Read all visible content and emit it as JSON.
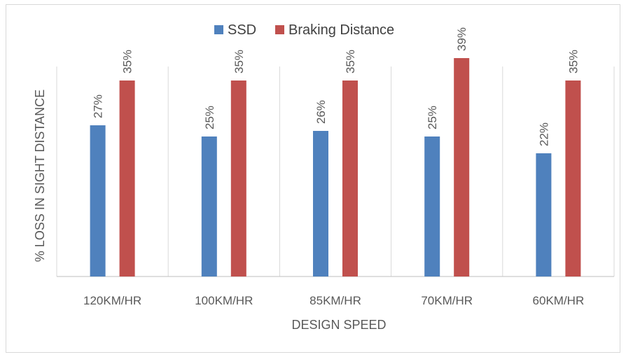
{
  "chart_data": {
    "type": "bar",
    "categories": [
      "120KM/HR",
      "100KM/HR",
      "85KM/HR",
      "70KM/HR",
      "60KM/HR"
    ],
    "series": [
      {
        "name": "SSD",
        "values": [
          27,
          25,
          26,
          25,
          22
        ],
        "labels": [
          "27%",
          "25%",
          "26%",
          "25%",
          "22%"
        ],
        "color": "#4f81bd"
      },
      {
        "name": "Braking Distance",
        "values": [
          35,
          35,
          35,
          39,
          35
        ],
        "labels": [
          "35%",
          "35%",
          "35%",
          "39%",
          "35%"
        ],
        "color": "#c0504d"
      }
    ],
    "xlabel": "DESIGN SPEED",
    "ylabel": "% LOSS IN SIGHT DISTANCE",
    "ylim": [
      0,
      40
    ],
    "grid": "vertical category separators",
    "legend": "top-center",
    "colors": {
      "grid": "#d9d9d9",
      "axis": "#bfbfbf",
      "text": "#595959"
    }
  }
}
